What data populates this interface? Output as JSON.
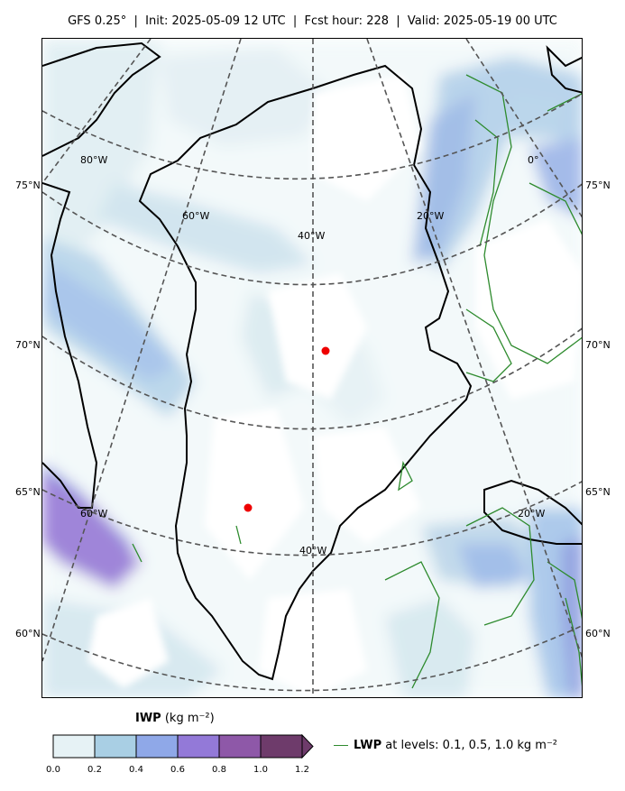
{
  "title": "GFS 0.25°  |  Init: 2025-05-09 12 UTC  |  Fcst hour: 228  |  Valid: 2025-05-19 00 UTC",
  "map": {
    "lat_labels_left": [
      "75°N",
      "70°N",
      "65°N",
      "60°N"
    ],
    "lat_labels_right": [
      "75°N",
      "70°N",
      "65°N",
      "60°N"
    ],
    "lon_labels_inner": [
      "80°W",
      "60°W",
      "40°W",
      "20°W",
      "0°",
      "60°W",
      "40°W",
      "20°W"
    ],
    "coastline_color": "#000000",
    "gridline_color": "#555555",
    "lwp_contour_color": "#2e8b2e",
    "marker_color": "#ee0000",
    "markers": [
      "marker-a",
      "marker-b"
    ]
  },
  "colorbar": {
    "variable": "IWP",
    "units": "(kg m⁻²)",
    "ticks": [
      "0.0",
      "0.2",
      "0.4",
      "0.6",
      "0.8",
      "1.0",
      "1.2"
    ],
    "colors": [
      "#e6f2f5",
      "#a9cfe4",
      "#8fa8e8",
      "#9379d8",
      "#8e58a8",
      "#6e3b6b"
    ]
  },
  "legend": {
    "variable": "LWP",
    "text": " at levels: 0.1, 0.5, 1.0  kg m⁻²"
  }
}
